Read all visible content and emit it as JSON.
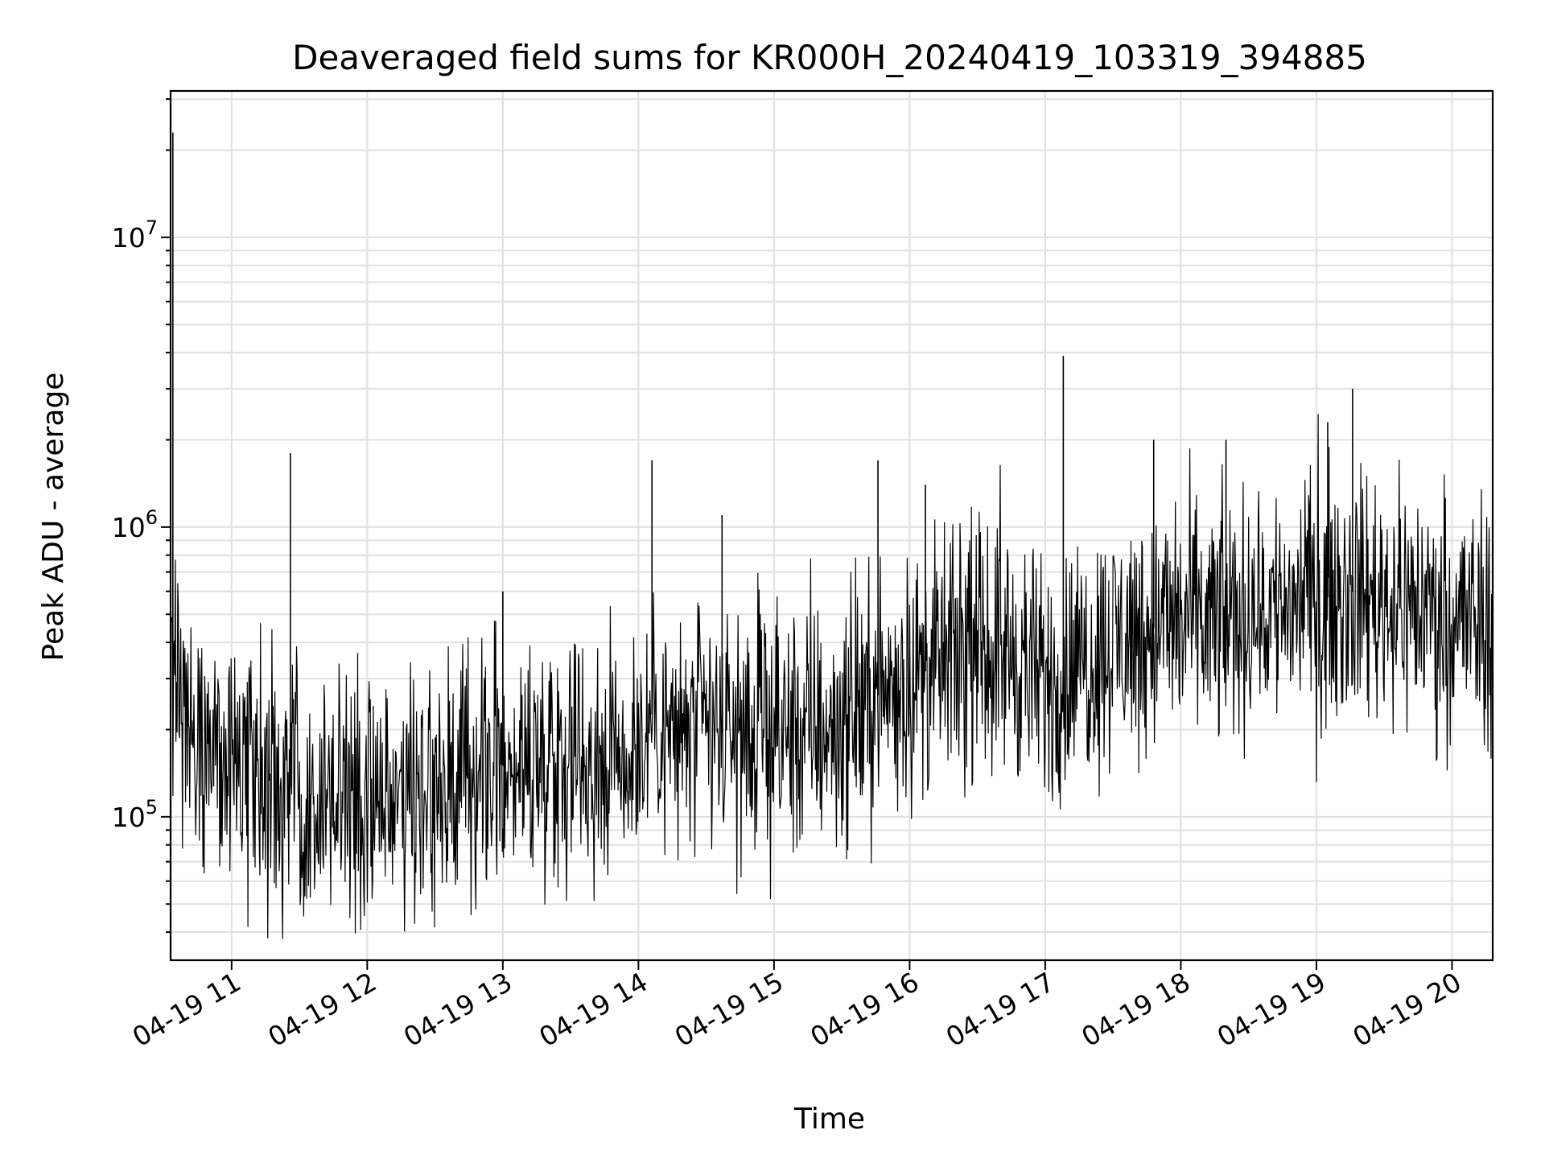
{
  "chart_data": {
    "type": "line",
    "title": "Deaveraged field sums for KR000H_20240419_103319_394885",
    "xlabel": "Time",
    "ylabel": "Peak ADU - average",
    "x_tick_labels": [
      "04-19 11",
      "04-19 12",
      "04-19 13",
      "04-19 14",
      "04-19 15",
      "04-19 16",
      "04-19 17",
      "04-19 18",
      "04-19 19",
      "04-19 20"
    ],
    "x_ticks": [
      "2024-04-19 11:00",
      "2024-04-19 12:00",
      "2024-04-19 13:00",
      "2024-04-19 14:00",
      "2024-04-19 15:00",
      "2024-04-19 16:00",
      "2024-04-19 17:00",
      "2024-04-19 18:00",
      "2024-04-19 19:00",
      "2024-04-19 20:00"
    ],
    "y_tick_labels": [
      {
        "base": "10",
        "exp": "5",
        "value": 100000
      },
      {
        "base": "10",
        "exp": "6",
        "value": 1000000
      },
      {
        "base": "10",
        "exp": "7",
        "value": 10000000
      }
    ],
    "y_scale": "log",
    "xlim": [
      "2024-04-19 10:33",
      "2024-04-19 20:18"
    ],
    "ylim": [
      32000,
      32000000
    ],
    "grid": true,
    "line_color": "#000000",
    "grid_color": "#e0e0e0",
    "series": [
      {
        "x": [
          "2024-04-19 10:33",
          "2024-04-19 10:40",
          "2024-04-19 10:50",
          "2024-04-19 11:00",
          "2024-04-19 11:15",
          "2024-04-19 11:30",
          "2024-04-19 11:45",
          "2024-04-19 12:00",
          "2024-04-19 12:15",
          "2024-04-19 12:30",
          "2024-04-19 12:45",
          "2024-04-19 13:00",
          "2024-04-19 13:15",
          "2024-04-19 13:30",
          "2024-04-19 13:45",
          "2024-04-19 14:00",
          "2024-04-19 14:05",
          "2024-04-19 14:15",
          "2024-04-19 14:30",
          "2024-04-19 14:45",
          "2024-04-19 15:00",
          "2024-04-19 15:15",
          "2024-04-19 15:30",
          "2024-04-19 15:45",
          "2024-04-19 16:00",
          "2024-04-19 16:15",
          "2024-04-19 16:30",
          "2024-04-19 16:45",
          "2024-04-19 17:00",
          "2024-04-19 17:15",
          "2024-04-19 17:30",
          "2024-04-19 17:45",
          "2024-04-19 18:00",
          "2024-04-19 18:15",
          "2024-04-19 18:30",
          "2024-04-19 18:45",
          "2024-04-19 19:00",
          "2024-04-19 19:15",
          "2024-04-19 19:30",
          "2024-04-19 19:45",
          "2024-04-19 20:00",
          "2024-04-19 20:18"
        ],
        "values": [
          300000,
          250000,
          190000,
          140000,
          130000,
          125000,
          120000,
          120000,
          125000,
          130000,
          135000,
          150000,
          160000,
          165000,
          165000,
          170000,
          230000,
          190000,
          200000,
          190000,
          190000,
          195000,
          210000,
          260000,
          300000,
          340000,
          380000,
          370000,
          280000,
          340000,
          400000,
          440000,
          480000,
          460000,
          500000,
          540000,
          560000,
          600000,
          570000,
          530000,
          500000,
          440000
        ]
      },
      {
        "name": "",
        "x": [
          "2024-04-19 10:34",
          "2024-04-19 11:26",
          "2024-04-19 13:00",
          "2024-04-19 14:06",
          "2024-04-19 14:37",
          "2024-04-19 15:46",
          "2024-04-19 16:07",
          "2024-04-19 17:08",
          "2024-04-19 17:48",
          "2024-04-19 18:20",
          "2024-04-19 19:05",
          "2024-04-19 19:16"
        ],
        "values": [
          23000000,
          1800000,
          600000,
          1700000,
          1100000,
          1700000,
          1400000,
          3900000,
          2000000,
          2000000,
          2300000,
          3000000
        ]
      }
    ]
  }
}
